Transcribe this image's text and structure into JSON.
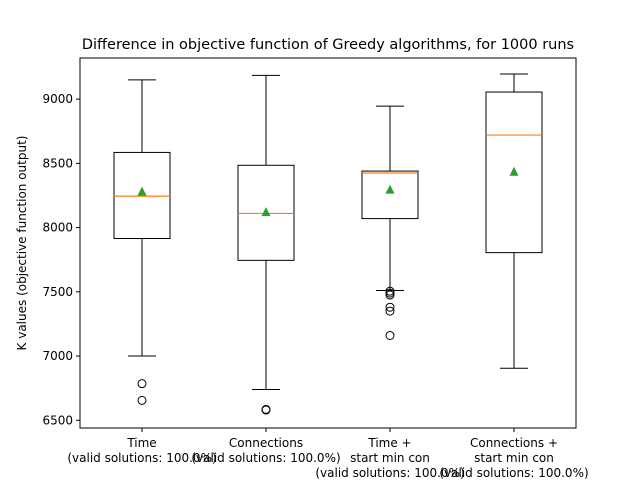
{
  "chart_data": {
    "type": "box",
    "title": "Difference in objective function of Greedy algorithms, for 1000 runs",
    "ylabel": "K values (objective function output)",
    "xlabel": "",
    "ylim": [
      6440,
      9320
    ],
    "yticks": [
      6500,
      7000,
      7500,
      8000,
      8500,
      9000
    ],
    "grid": false,
    "colors": {
      "box": "#000000",
      "median": "#ff7f0e",
      "mean": "#2ca02c"
    },
    "categories": [
      [
        "Time",
        "(valid solutions: 100.0%)"
      ],
      [
        "Connections",
        "(valid solutions: 100.0%)"
      ],
      [
        "Time +",
        "start min con",
        "(valid solutions: 100.0%)"
      ],
      [
        "Connections +",
        "start min con",
        "(valid solutions: 100.0%)"
      ]
    ],
    "boxes": [
      {
        "whisker_low": 7000,
        "q1": 7915,
        "median": 8245,
        "q3": 8585,
        "whisker_high": 9150,
        "mean": 8280,
        "outliers": [
          6785,
          6655
        ]
      },
      {
        "whisker_low": 6740,
        "q1": 7745,
        "median": 8110,
        "q3": 8485,
        "whisker_high": 9185,
        "mean": 8120,
        "outliers": [
          6580,
          6585
        ]
      },
      {
        "whisker_low": 7510,
        "q1": 8070,
        "median": 8425,
        "q3": 8440,
        "whisker_high": 8945,
        "mean": 8295,
        "outliers": [
          7505,
          7490,
          7475,
          7380,
          7350,
          7160
        ]
      },
      {
        "whisker_low": 6905,
        "q1": 7805,
        "median": 8720,
        "q3": 9055,
        "whisker_high": 9195,
        "mean": 8435,
        "outliers": []
      }
    ]
  }
}
